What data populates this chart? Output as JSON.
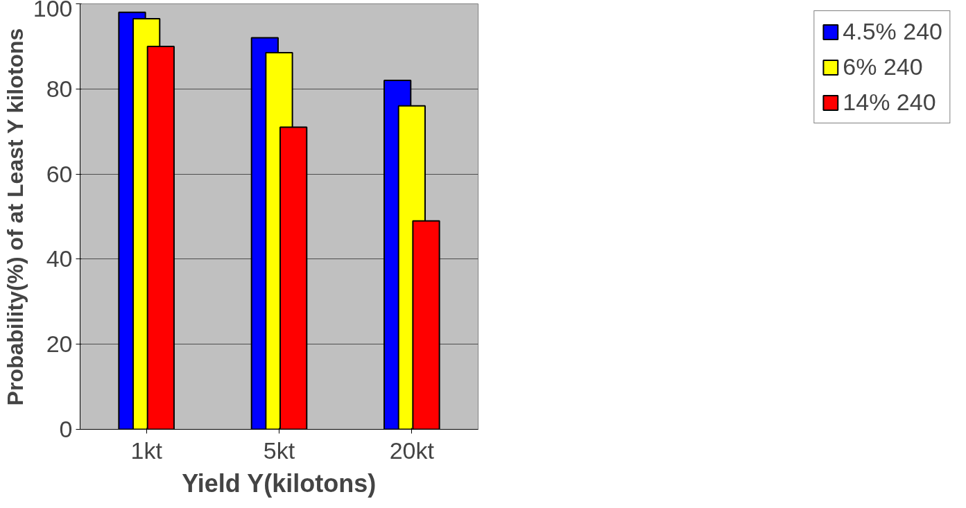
{
  "chart_data": {
    "type": "bar",
    "xlabel": "Yield Y(kilotons)",
    "ylabel": "Probability(%) of at Least Y kilotons",
    "categories": [
      "1kt",
      "5kt",
      "20kt"
    ],
    "series": [
      {
        "name": "4.5% 240",
        "color": "#0000ff",
        "values": [
          98,
          92,
          82
        ]
      },
      {
        "name": "6% 240",
        "color": "#ffff00",
        "values": [
          96.5,
          88.5,
          76
        ]
      },
      {
        "name": "14% 240",
        "color": "#ff0000",
        "values": [
          90,
          71,
          49
        ]
      }
    ],
    "ylim": [
      0,
      100
    ],
    "yticks": [
      0,
      20,
      40,
      60,
      80,
      100
    ],
    "grid": "y",
    "legend": "right"
  }
}
